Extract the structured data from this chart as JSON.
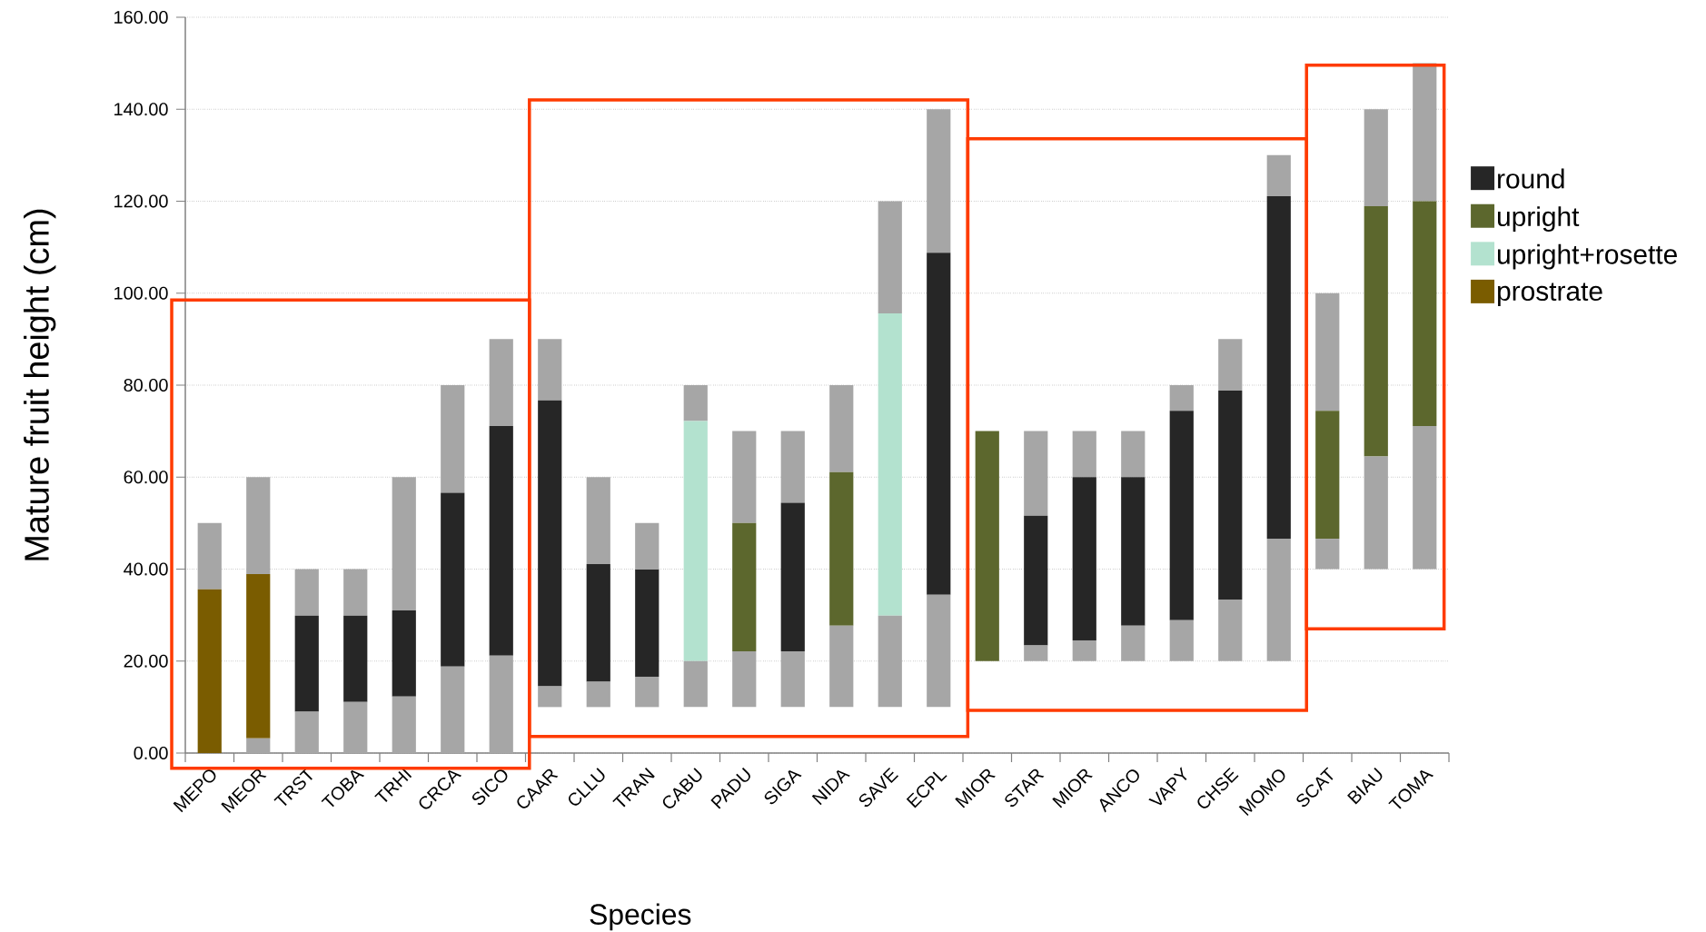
{
  "chart_data": {
    "type": "bar",
    "xlabel": "Species",
    "ylabel": "Mature fruit height (cm)",
    "categories": [
      "MEPO",
      "MEOR",
      "TRST",
      "TOBA",
      "TRHI",
      "CRCA",
      "SICO",
      "CAAR",
      "CLLU",
      "TRAN",
      "CABU",
      "PADU",
      "SIGA",
      "NIDA",
      "SAVE",
      "ECPL",
      "MIOR",
      "STAR",
      "MIOR",
      "ANCO",
      "VAPY",
      "CHSE",
      "MOMO",
      "SCAT",
      "BIAU",
      "TOMA"
    ],
    "series": [
      {
        "color": "#a6a6a6",
        "base": [
          null,
          0,
          0,
          0,
          0,
          0,
          0,
          10,
          10,
          10,
          10,
          10,
          10,
          10,
          10,
          10,
          null,
          20,
          20,
          20,
          20,
          20,
          20,
          40,
          40,
          40
        ],
        "values": [
          null,
          3.2,
          9.0,
          11.1,
          12.3,
          18.8,
          21.2,
          4.5,
          5.5,
          6.6,
          10.0,
          12.1,
          12.1,
          17.7,
          19.9,
          24.4,
          null,
          3.4,
          4.5,
          7.7,
          8.9,
          13.4,
          26.6,
          6.6,
          24.5,
          31.1
        ]
      },
      {
        "name": "round",
        "color": "#262626",
        "base": [
          null,
          null,
          9.0,
          11.1,
          12.3,
          18.8,
          21.2,
          14.5,
          15.5,
          16.6,
          null,
          null,
          22.1,
          null,
          null,
          34.4,
          null,
          23.4,
          24.5,
          27.7,
          28.9,
          33.4,
          46.6,
          null,
          null,
          null
        ],
        "values": [
          null,
          null,
          20.9,
          18.8,
          18.7,
          37.8,
          49.9,
          62.2,
          25.6,
          23.3,
          null,
          null,
          32.3,
          null,
          null,
          74.4,
          null,
          28.2,
          35.5,
          32.3,
          45.5,
          45.4,
          74.5,
          null,
          null,
          null
        ]
      },
      {
        "name": "upright",
        "color": "#5c672d",
        "base": [
          null,
          null,
          null,
          null,
          null,
          null,
          null,
          null,
          null,
          null,
          null,
          22.1,
          null,
          27.7,
          null,
          null,
          20,
          null,
          null,
          null,
          null,
          null,
          null,
          46.6,
          64.5,
          71.1
        ],
        "values": [
          null,
          null,
          null,
          null,
          null,
          null,
          null,
          null,
          null,
          null,
          null,
          27.9,
          null,
          33.4,
          null,
          null,
          50.0,
          null,
          null,
          null,
          null,
          null,
          null,
          27.8,
          54.4,
          48.9
        ]
      },
      {
        "name": "upright+rosette",
        "color": "#b3e2cf",
        "base": [
          null,
          null,
          null,
          null,
          null,
          null,
          null,
          null,
          null,
          null,
          20.0,
          null,
          null,
          null,
          29.9,
          null,
          null,
          null,
          null,
          null,
          null,
          null,
          null,
          null,
          null,
          null
        ],
        "values": [
          null,
          null,
          null,
          null,
          null,
          null,
          null,
          null,
          null,
          null,
          52.2,
          null,
          null,
          null,
          65.7,
          null,
          null,
          null,
          null,
          null,
          null,
          null,
          null,
          null,
          null,
          null
        ]
      },
      {
        "name": "prostrate",
        "color": "#7a5c00",
        "base": [
          0,
          3.2,
          null,
          null,
          null,
          null,
          null,
          null,
          null,
          null,
          null,
          null,
          null,
          null,
          null,
          null,
          null,
          null,
          null,
          null,
          null,
          null,
          null,
          null,
          null,
          null
        ],
        "values": [
          35.6,
          35.7,
          null,
          null,
          null,
          null,
          null,
          null,
          null,
          null,
          null,
          null,
          null,
          null,
          null,
          null,
          null,
          null,
          null,
          null,
          null,
          null,
          null,
          null,
          null,
          null
        ]
      },
      {
        "color": "#a6a6a6",
        "base": [
          35.6,
          38.9,
          29.9,
          29.9,
          31.0,
          56.6,
          71.1,
          76.7,
          41.1,
          39.9,
          72.2,
          50.0,
          54.4,
          61.1,
          95.6,
          108.8,
          null,
          51.6,
          60.0,
          60.0,
          74.4,
          78.8,
          121.1,
          74.4,
          118.9,
          120.0
        ],
        "values": [
          14.4,
          21.1,
          10.1,
          10.1,
          29.0,
          23.4,
          18.9,
          13.3,
          18.9,
          10.1,
          7.8,
          20.0,
          15.6,
          18.9,
          24.4,
          31.2,
          null,
          18.4,
          10.0,
          10.0,
          5.6,
          11.2,
          8.9,
          25.6,
          21.1,
          30.0
        ]
      }
    ],
    "ylim": [
      0,
      160
    ],
    "yticks": [
      {
        "value": 0,
        "label": "0.00"
      },
      {
        "value": 20,
        "label": "20.00"
      },
      {
        "value": 40,
        "label": "40.00"
      },
      {
        "value": 60,
        "label": "60.00"
      },
      {
        "value": 80,
        "label": "80.00"
      },
      {
        "value": 100,
        "label": "100.00"
      },
      {
        "value": 120,
        "label": "120.00"
      },
      {
        "value": 140,
        "label": "140.00"
      },
      {
        "value": 160,
        "label": "160.00"
      }
    ],
    "grid": "y",
    "legend": "right"
  }
}
